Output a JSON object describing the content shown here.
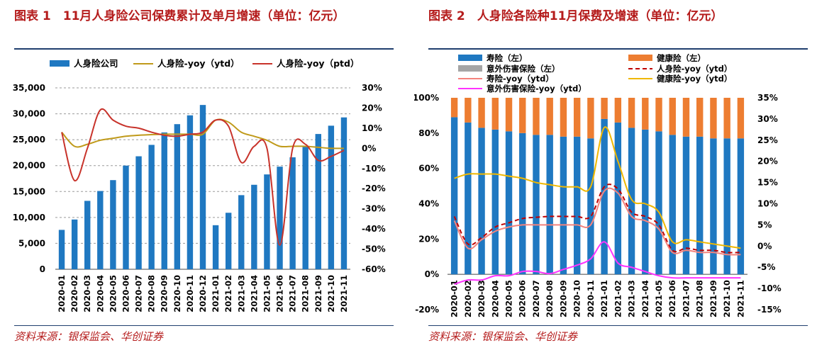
{
  "left": {
    "title": "图表 1　11月人身险公司保费累计及单月增速（单位：亿元）",
    "source": "资料来源：银保监会、华创证券",
    "chart_data": {
      "type": "bar",
      "categories": [
        "2020-01",
        "2020-02",
        "2020-03",
        "2020-04",
        "2020-05",
        "2020-06",
        "2020-07",
        "2020-08",
        "2020-09",
        "2020-10",
        "2020-11",
        "2020-12",
        "2021-01",
        "2021-02",
        "2021-03",
        "2021-04",
        "2021-05",
        "2021-06",
        "2021-07",
        "2021-08",
        "2021-09",
        "2021-10",
        "2021-11"
      ],
      "ylim": [
        0,
        35000
      ],
      "yticks": [
        "0",
        "5,000",
        "10,000",
        "15,000",
        "20,000",
        "25,000",
        "30,000",
        "35,000"
      ],
      "y2lim": [
        -60,
        30
      ],
      "y2ticks": [
        "-60%",
        "-50%",
        "-40%",
        "-30%",
        "-20%",
        "-10%",
        "0%",
        "10%",
        "20%",
        "30%"
      ],
      "legend": [
        "人身险公司",
        "人身险-yoy（ytd）",
        "人身险-yoy（ptd）"
      ],
      "colors": {
        "bar": "#1f78c1",
        "ytd": "#c09a1a",
        "ptd": "#c8332b"
      },
      "series": [
        {
          "name": "人身险公司",
          "type": "bar",
          "values": [
            7600,
            9600,
            13200,
            15100,
            17200,
            20000,
            21800,
            24000,
            26400,
            28000,
            29700,
            31700,
            8500,
            10900,
            14300,
            16300,
            18300,
            19800,
            21600,
            23600,
            26100,
            27700,
            29300
          ]
        },
        {
          "name": "人身险-yoy（ytd）",
          "type": "line",
          "axis": "y2",
          "values": [
            8,
            1,
            2,
            4,
            5,
            6,
            6.5,
            6.8,
            7,
            7,
            7,
            7,
            14,
            13,
            8,
            6,
            4,
            1,
            1,
            1,
            0.5,
            0,
            0
          ]
        },
        {
          "name": "人身险-yoy（ptd）",
          "type": "line",
          "axis": "y2",
          "values": [
            8,
            -16,
            0,
            19,
            14,
            11,
            10,
            8,
            6.5,
            6,
            7,
            8,
            14,
            11,
            -7,
            1,
            0,
            -48,
            0,
            2,
            -6,
            -4,
            -1
          ]
        }
      ]
    }
  },
  "right": {
    "title": "图表 2　人身险各险种11月保费及增速（单位：亿元）",
    "source": "资料来源：银保监会、华创证券",
    "chart_data": {
      "type": "bar",
      "stacked": true,
      "categories": [
        "2020-01",
        "2020-02",
        "2020-03",
        "2020-04",
        "2020-05",
        "2020-06",
        "2020-07",
        "2020-08",
        "2020-09",
        "2020-10",
        "2020-11",
        "2021-01",
        "2021-02",
        "2021-03",
        "2021-04",
        "2021-05",
        "2021-06",
        "2021-07",
        "2021-08",
        "2021-09",
        "2021-10",
        "2021-11"
      ],
      "ylim": [
        -20,
        100
      ],
      "yticks": [
        "-20%",
        "0%",
        "20%",
        "40%",
        "60%",
        "80%",
        "100%"
      ],
      "y2lim": [
        -15,
        35
      ],
      "y2ticks": [
        "-15%",
        "-10%",
        "-5%",
        "0%",
        "5%",
        "10%",
        "15%",
        "20%",
        "25%",
        "30%",
        "35%"
      ],
      "legend": [
        "寿险（左）",
        "健康险（左）",
        "意外伤害保险（左）",
        "人身险-yoy（ytd）",
        "寿险-yoy（ytd）",
        "健康险-yoy（ytd）",
        "意外伤害保险-yoy（ytd）"
      ],
      "colors": {
        "life": "#1f78c1",
        "health": "#ed7d31",
        "accident": "#a5a5a5",
        "total": "#c00000",
        "life_yoy": "#f4837d",
        "health_yoy": "#f0b800",
        "accident_yoy": "#ff33ff"
      },
      "series": [
        {
          "name": "寿险（左）",
          "type": "bar",
          "values": [
            89,
            86,
            83,
            82,
            81,
            80,
            79,
            79,
            78,
            78,
            77,
            88,
            86,
            83,
            82,
            81,
            79,
            78,
            78,
            77,
            77,
            77
          ]
        },
        {
          "name": "健康险（左）",
          "type": "bar",
          "values": [
            11,
            14,
            17,
            18,
            19,
            20,
            21,
            21,
            22,
            22,
            23,
            12,
            14,
            17,
            18,
            19,
            21,
            22,
            22,
            23,
            23,
            23
          ]
        },
        {
          "name": "意外伤害保险（左）",
          "type": "bar",
          "values": [
            0,
            0,
            0,
            0,
            0,
            0,
            0,
            0,
            0,
            0,
            0,
            0,
            0,
            0,
            0,
            0,
            0,
            0,
            0,
            0,
            0,
            0
          ]
        },
        {
          "name": "人身险-yoy（ytd）",
          "type": "line",
          "axis": "y2",
          "dash": true,
          "values": [
            7,
            0.5,
            2,
            4.5,
            5.5,
            6.5,
            6.8,
            7,
            7,
            7,
            7,
            14,
            13.5,
            8,
            7,
            5,
            -1,
            -0.5,
            -1,
            -1,
            -1.5,
            -1.5
          ]
        },
        {
          "name": "寿险-yoy（ytd）",
          "type": "line",
          "axis": "y2",
          "values": [
            6,
            -0.5,
            1.5,
            3.5,
            4.5,
            5,
            5,
            5,
            5,
            5,
            5,
            13,
            12.5,
            7,
            6,
            4,
            -1.5,
            -1,
            -1.5,
            -1.5,
            -2,
            -2
          ]
        },
        {
          "name": "健康险-yoy（ytd）",
          "type": "line",
          "axis": "y2",
          "values": [
            16,
            17,
            17,
            17,
            16.5,
            16,
            15,
            14.5,
            14,
            14,
            14,
            28,
            20,
            11,
            10,
            8,
            1,
            1.5,
            1,
            0.5,
            0,
            -0.5
          ]
        },
        {
          "name": "意外伤害保险-yoy（ytd）",
          "type": "line",
          "axis": "y2",
          "values": [
            -9,
            -8,
            -8,
            -7,
            -7,
            -6,
            -6,
            -6.5,
            -5.5,
            -4.5,
            -3,
            1,
            -4,
            -5,
            -6,
            -7,
            -7.5,
            -7.5,
            -7.5,
            -7.5,
            -7.5,
            -7.5
          ]
        }
      ]
    }
  }
}
